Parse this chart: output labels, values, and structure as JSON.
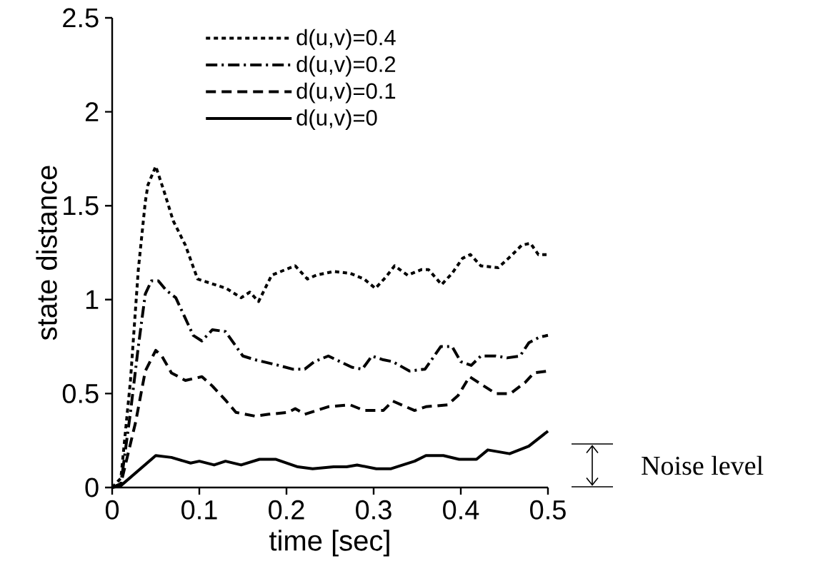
{
  "chart_data": {
    "type": "line",
    "xlabel": "time [sec]",
    "ylabel": "state distance",
    "xlim": [
      0,
      0.5
    ],
    "ylim": [
      0,
      2.5
    ],
    "xticks": [
      0,
      0.1,
      0.2,
      0.3,
      0.4,
      0.5
    ],
    "yticks": [
      0,
      0.5,
      1,
      1.5,
      2,
      2.5
    ],
    "legend": "top",
    "annotations": [
      "Noise level"
    ],
    "series": [
      {
        "name": "d(u,v)=0.4",
        "color": "#000000",
        "line_style": "dotted",
        "x": [
          0,
          0.01,
          0.021,
          0.03,
          0.038,
          0.041,
          0.05,
          0.06,
          0.07,
          0.084,
          0.098,
          0.111,
          0.131,
          0.148,
          0.158,
          0.168,
          0.183,
          0.199,
          0.21,
          0.224,
          0.234,
          0.254,
          0.273,
          0.289,
          0.302,
          0.314,
          0.324,
          0.339,
          0.355,
          0.363,
          0.378,
          0.39,
          0.402,
          0.411,
          0.423,
          0.443,
          0.457,
          0.47,
          0.48,
          0.489,
          0.5
        ],
        "values": [
          0,
          0.05,
          0.57,
          1.16,
          1.52,
          1.61,
          1.71,
          1.57,
          1.42,
          1.29,
          1.11,
          1.09,
          1.06,
          1.01,
          1.04,
          0.99,
          1.13,
          1.16,
          1.18,
          1.11,
          1.13,
          1.15,
          1.14,
          1.11,
          1.06,
          1.12,
          1.18,
          1.13,
          1.16,
          1.16,
          1.08,
          1.14,
          1.22,
          1.24,
          1.18,
          1.17,
          1.23,
          1.29,
          1.3,
          1.24,
          1.24
        ]
      },
      {
        "name": "d(u,v)=0.2",
        "color": "#000000",
        "line_style": "dashdot",
        "x": [
          0,
          0.01,
          0.021,
          0.03,
          0.038,
          0.045,
          0.053,
          0.062,
          0.073,
          0.087,
          0.093,
          0.103,
          0.115,
          0.13,
          0.15,
          0.164,
          0.191,
          0.207,
          0.221,
          0.232,
          0.248,
          0.275,
          0.287,
          0.298,
          0.311,
          0.322,
          0.341,
          0.359,
          0.377,
          0.39,
          0.4,
          0.412,
          0.423,
          0.44,
          0.453,
          0.468,
          0.478,
          0.49,
          0.5
        ],
        "values": [
          0,
          0.02,
          0.4,
          0.75,
          1.03,
          1.1,
          1.1,
          1.05,
          1.01,
          0.87,
          0.81,
          0.78,
          0.84,
          0.83,
          0.7,
          0.68,
          0.65,
          0.63,
          0.63,
          0.67,
          0.7,
          0.64,
          0.63,
          0.7,
          0.68,
          0.67,
          0.62,
          0.63,
          0.75,
          0.75,
          0.67,
          0.65,
          0.7,
          0.7,
          0.69,
          0.7,
          0.77,
          0.8,
          0.81
        ]
      },
      {
        "name": "d(u,v)=0.1",
        "color": "#000000",
        "line_style": "dashed",
        "x": [
          0,
          0.01,
          0.027,
          0.038,
          0.05,
          0.057,
          0.068,
          0.084,
          0.103,
          0.115,
          0.131,
          0.142,
          0.164,
          0.18,
          0.202,
          0.21,
          0.221,
          0.248,
          0.273,
          0.289,
          0.311,
          0.322,
          0.347,
          0.36,
          0.385,
          0.397,
          0.41,
          0.42,
          0.44,
          0.457,
          0.474,
          0.484,
          0.5
        ],
        "values": [
          0,
          0.02,
          0.35,
          0.62,
          0.73,
          0.7,
          0.61,
          0.57,
          0.59,
          0.54,
          0.46,
          0.4,
          0.38,
          0.39,
          0.4,
          0.42,
          0.39,
          0.43,
          0.44,
          0.41,
          0.41,
          0.46,
          0.41,
          0.43,
          0.44,
          0.49,
          0.59,
          0.56,
          0.5,
          0.5,
          0.56,
          0.61,
          0.62
        ]
      },
      {
        "name": "d(u,v)=0",
        "color": "#000000",
        "line_style": "solid",
        "x": [
          0,
          0.01,
          0.05,
          0.068,
          0.09,
          0.1,
          0.117,
          0.13,
          0.148,
          0.169,
          0.188,
          0.213,
          0.23,
          0.254,
          0.269,
          0.281,
          0.303,
          0.32,
          0.347,
          0.36,
          0.38,
          0.398,
          0.418,
          0.431,
          0.456,
          0.478,
          0.5
        ],
        "values": [
          0,
          0.01,
          0.17,
          0.16,
          0.13,
          0.14,
          0.12,
          0.14,
          0.12,
          0.15,
          0.15,
          0.11,
          0.1,
          0.11,
          0.11,
          0.12,
          0.1,
          0.1,
          0.14,
          0.17,
          0.17,
          0.15,
          0.15,
          0.2,
          0.18,
          0.22,
          0.3
        ]
      }
    ]
  }
}
